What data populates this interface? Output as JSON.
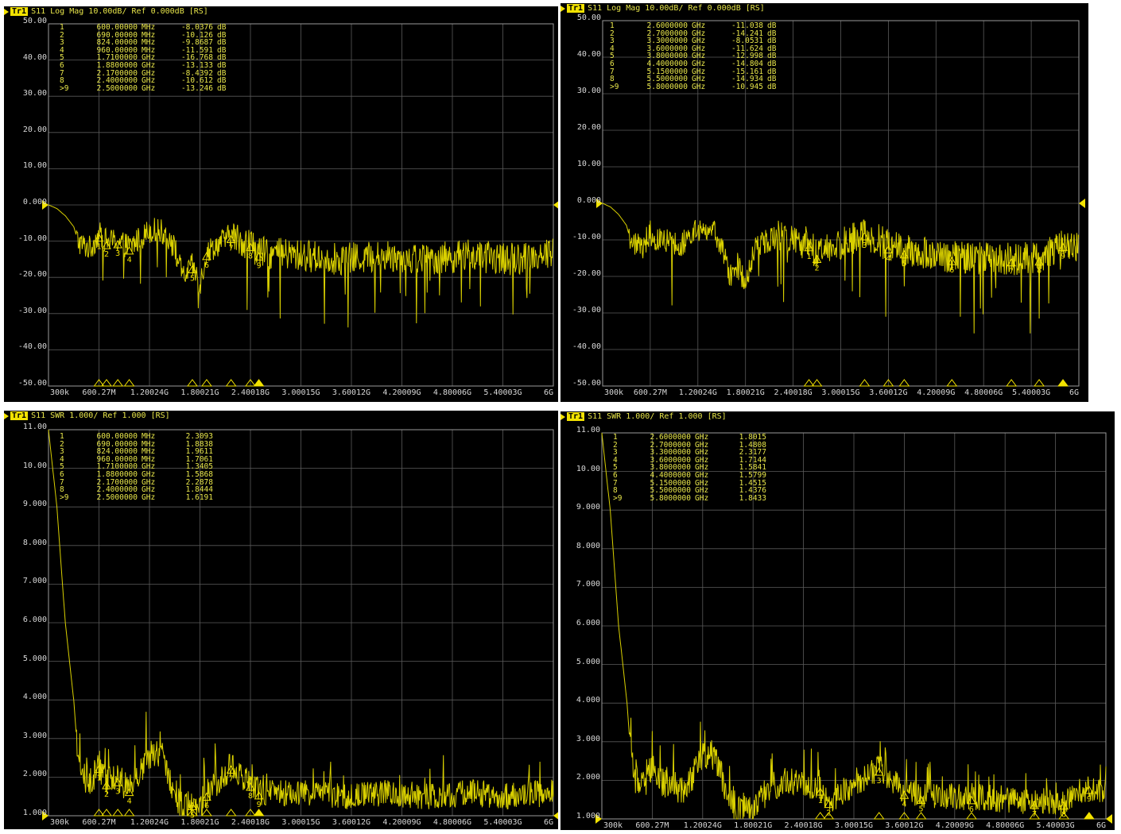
{
  "colors": {
    "trace": "#d9d000",
    "grid": "#5a5a5a",
    "frame": "#9a9a9a",
    "marker": "#f2e200",
    "label": "#d8d8d8",
    "background": "#000000"
  },
  "panels": [
    {
      "header": {
        "trace": "Tr1",
        "text": "S11 Log Mag 10.00dB/ Ref 0.000dB [RS]"
      },
      "ref_value": 0,
      "markers": [
        {
          "id": "1",
          "freq": "600.00000",
          "unit": "MHz",
          "value": "-8.0376",
          "suffix": "dB"
        },
        {
          "id": "2",
          "freq": "690.00000",
          "unit": "MHz",
          "value": "-10.126",
          "suffix": "dB"
        },
        {
          "id": "3",
          "freq": "824.00000",
          "unit": "MHz",
          "value": "-9.8687",
          "suffix": "dB"
        },
        {
          "id": "4",
          "freq": "960.00000",
          "unit": "MHz",
          "value": "-11.591",
          "suffix": "dB"
        },
        {
          "id": "5",
          "freq": "1.7100000",
          "unit": "GHz",
          "value": "-16.768",
          "suffix": "dB"
        },
        {
          "id": "6",
          "freq": "1.8800000",
          "unit": "GHz",
          "value": "-13.133",
          "suffix": "dB"
        },
        {
          "id": "7",
          "freq": "2.1700000",
          "unit": "GHz",
          "value": "-8.4392",
          "suffix": "dB"
        },
        {
          "id": "8",
          "freq": "2.4000000",
          "unit": "GHz",
          "value": "-10.612",
          "suffix": "dB"
        },
        {
          "id": ">9",
          "freq": "2.5000000",
          "unit": "GHz",
          "value": "-13.246",
          "suffix": "dB"
        }
      ]
    },
    {
      "header": {
        "trace": "Tr1",
        "text": "S11 Log Mag 10.00dB/ Ref 0.000dB [RS]"
      },
      "ref_value": 0,
      "markers": [
        {
          "id": "1",
          "freq": "2.6000000",
          "unit": "GHz",
          "value": "-11.038",
          "suffix": "dB"
        },
        {
          "id": "2",
          "freq": "2.7000000",
          "unit": "GHz",
          "value": "-14.241",
          "suffix": "dB"
        },
        {
          "id": "3",
          "freq": "3.3000000",
          "unit": "GHz",
          "value": "-8.0531",
          "suffix": "dB"
        },
        {
          "id": "4",
          "freq": "3.6000000",
          "unit": "GHz",
          "value": "-11.624",
          "suffix": "dB"
        },
        {
          "id": "5",
          "freq": "3.8000000",
          "unit": "GHz",
          "value": "-12.998",
          "suffix": "dB"
        },
        {
          "id": "6",
          "freq": "4.4000000",
          "unit": "GHz",
          "value": "-14.804",
          "suffix": "dB"
        },
        {
          "id": "7",
          "freq": "5.1500000",
          "unit": "GHz",
          "value": "-15.161",
          "suffix": "dB"
        },
        {
          "id": "8",
          "freq": "5.5000000",
          "unit": "GHz",
          "value": "-14.934",
          "suffix": "dB"
        },
        {
          "id": ">9",
          "freq": "5.8000000",
          "unit": "GHz",
          "value": "-10.945",
          "suffix": "dB"
        }
      ]
    },
    {
      "header": {
        "trace": "Tr1",
        "text": "S11 SWR 1.000/ Ref 1.000 [RS]"
      },
      "ref_value": 1,
      "markers": [
        {
          "id": "1",
          "freq": "600.00000",
          "unit": "MHz",
          "value": "2.3093",
          "suffix": ""
        },
        {
          "id": "2",
          "freq": "690.00000",
          "unit": "MHz",
          "value": "1.8838",
          "suffix": ""
        },
        {
          "id": "3",
          "freq": "824.00000",
          "unit": "MHz",
          "value": "1.9611",
          "suffix": ""
        },
        {
          "id": "4",
          "freq": "960.00000",
          "unit": "MHz",
          "value": "1.7061",
          "suffix": ""
        },
        {
          "id": "5",
          "freq": "1.7100000",
          "unit": "GHz",
          "value": "1.3405",
          "suffix": ""
        },
        {
          "id": "6",
          "freq": "1.8800000",
          "unit": "GHz",
          "value": "1.5868",
          "suffix": ""
        },
        {
          "id": "7",
          "freq": "2.1700000",
          "unit": "GHz",
          "value": "2.2878",
          "suffix": ""
        },
        {
          "id": "8",
          "freq": "2.4000000",
          "unit": "GHz",
          "value": "1.8444",
          "suffix": ""
        },
        {
          "id": ">9",
          "freq": "2.5000000",
          "unit": "GHz",
          "value": "1.6191",
          "suffix": ""
        }
      ]
    },
    {
      "header": {
        "trace": "Tr1",
        "text": "S11 SWR 1.000/ Ref 1.000 [RS]"
      },
      "ref_value": 1,
      "markers": [
        {
          "id": "1",
          "freq": "2.6000000",
          "unit": "GHz",
          "value": "1.8015",
          "suffix": ""
        },
        {
          "id": "2",
          "freq": "2.7000000",
          "unit": "GHz",
          "value": "1.4808",
          "suffix": ""
        },
        {
          "id": "3",
          "freq": "3.3000000",
          "unit": "GHz",
          "value": "2.3177",
          "suffix": ""
        },
        {
          "id": "4",
          "freq": "3.6000000",
          "unit": "GHz",
          "value": "1.7144",
          "suffix": ""
        },
        {
          "id": "5",
          "freq": "3.8000000",
          "unit": "GHz",
          "value": "1.5841",
          "suffix": ""
        },
        {
          "id": "6",
          "freq": "4.4000000",
          "unit": "GHz",
          "value": "1.5799",
          "suffix": ""
        },
        {
          "id": "7",
          "freq": "5.1500000",
          "unit": "GHz",
          "value": "1.4515",
          "suffix": ""
        },
        {
          "id": "8",
          "freq": "5.5000000",
          "unit": "GHz",
          "value": "1.4376",
          "suffix": ""
        },
        {
          "id": ">9",
          "freq": "5.8000000",
          "unit": "GHz",
          "value": "1.8433",
          "suffix": ""
        }
      ]
    }
  ],
  "chart_data": [
    {
      "type": "line",
      "title": "S11 Log Mag 10.00dB/ Ref 0.000dB [RS]",
      "xlim_ghz": [
        0.0003,
        6.0
      ],
      "ylim": [
        -50,
        50
      ],
      "yticks": [
        "50.00",
        "40.00",
        "30.00",
        "20.00",
        "10.00",
        "0.000",
        "-10.00",
        "-20.00",
        "-30.00",
        "-40.00",
        "-50.00"
      ],
      "xticks": [
        "300k",
        "600.27M",
        "1.20024G",
        "1.80021G",
        "2.40018G",
        "3.00015G",
        "3.60012G",
        "4.20009G",
        "4.80006G",
        "5.40003G",
        "6G"
      ],
      "grid": true,
      "series": [
        {
          "x_ghz": [
            0.0003,
            0.1,
            0.2,
            0.3,
            0.35,
            0.4,
            0.5,
            0.6,
            0.69,
            0.824,
            0.96,
            1.1,
            1.2,
            1.3,
            1.4,
            1.5,
            1.6,
            1.71,
            1.8,
            1.88,
            2.0,
            2.17,
            2.3,
            2.4,
            2.5,
            3.0,
            3.5,
            4.0,
            4.5,
            5.0,
            5.5,
            6.0
          ],
          "y": [
            0,
            -1,
            -3,
            -6,
            -10,
            -11,
            -12,
            -8,
            -10.1,
            -9.9,
            -11.6,
            -9,
            -7,
            -7,
            -8,
            -12,
            -20,
            -16.8,
            -22,
            -13.1,
            -11,
            -8.4,
            -10,
            -10.6,
            -13.2,
            -14,
            -15,
            -14,
            -15,
            -14,
            -15,
            -13
          ]
        }
      ],
      "markers_ghz": [
        0.6,
        0.69,
        0.824,
        0.96,
        1.71,
        1.88,
        2.17,
        2.4,
        2.5
      ],
      "markers_y": [
        -8.0376,
        -10.126,
        -9.8687,
        -11.591,
        -16.768,
        -13.133,
        -8.4392,
        -10.612,
        -13.246
      ]
    },
    {
      "type": "line",
      "title": "S11 Log Mag 10.00dB/ Ref 0.000dB [RS]",
      "xlim_ghz": [
        0.0003,
        6.0
      ],
      "ylim": [
        -50,
        50
      ],
      "yticks": [
        "50.00",
        "40.00",
        "30.00",
        "20.00",
        "10.00",
        "0.000",
        "-10.00",
        "-20.00",
        "-30.00",
        "-40.00",
        "-50.00"
      ],
      "xticks": [
        "300k",
        "600.27M",
        "1.20024G",
        "1.80021G",
        "2.40018G",
        "3.00015G",
        "3.60012G",
        "4.20009G",
        "4.80006G",
        "5.40003G",
        "6G"
      ],
      "grid": true,
      "series": [
        {
          "x_ghz": [
            0.0003,
            0.1,
            0.2,
            0.3,
            0.35,
            0.4,
            0.5,
            0.6,
            0.7,
            0.824,
            0.96,
            1.1,
            1.2,
            1.3,
            1.4,
            1.5,
            1.6,
            1.7,
            1.8,
            1.9,
            2.0,
            2.2,
            2.4,
            2.6,
            2.7,
            3.3,
            3.6,
            3.8,
            4.4,
            5.15,
            5.5,
            5.8,
            6.0
          ],
          "y": [
            0,
            -1,
            -3,
            -6,
            -10,
            -11,
            -12,
            -8,
            -10,
            -10,
            -11.5,
            -9,
            -7,
            -7,
            -8,
            -12,
            -20,
            -17,
            -22,
            -13,
            -11,
            -9,
            -10,
            -11,
            -14.2,
            -8.1,
            -11.6,
            -13,
            -14.8,
            -15.2,
            -14.9,
            -10.9,
            -12
          ]
        }
      ],
      "markers_ghz": [
        2.6,
        2.7,
        3.3,
        3.6,
        3.8,
        4.4,
        5.15,
        5.5,
        5.8
      ],
      "markers_y": [
        -11.038,
        -14.241,
        -8.0531,
        -11.624,
        -12.998,
        -14.804,
        -15.161,
        -14.934,
        -10.945
      ]
    },
    {
      "type": "line",
      "title": "S11 SWR 1.000/ Ref 1.000 [RS]",
      "xlim_ghz": [
        0.0003,
        6.0
      ],
      "ylim": [
        1,
        11
      ],
      "yticks": [
        "11.00",
        "10.00",
        "9.000",
        "8.000",
        "7.000",
        "6.000",
        "5.000",
        "4.000",
        "3.000",
        "2.000",
        "1.000"
      ],
      "xticks": [
        "300k",
        "600.27M",
        "1.20024G",
        "1.80021G",
        "2.40018G",
        "3.00015G",
        "3.60012G",
        "4.20009G",
        "4.80006G",
        "5.40003G",
        "6G"
      ],
      "grid": true,
      "series": [
        {
          "x_ghz": [
            0.0003,
            0.1,
            0.2,
            0.3,
            0.35,
            0.4,
            0.5,
            0.6,
            0.69,
            0.824,
            0.96,
            1.1,
            1.2,
            1.3,
            1.4,
            1.5,
            1.6,
            1.71,
            1.8,
            1.88,
            2.0,
            2.17,
            2.3,
            2.4,
            2.5,
            3.0,
            3.5,
            4.0,
            4.5,
            5.0,
            5.5,
            6.0
          ],
          "y": [
            11,
            9,
            6,
            4,
            2.5,
            2,
            1.9,
            2.3,
            1.9,
            2.0,
            1.7,
            2.2,
            2.6,
            2.7,
            2.3,
            1.6,
            1.2,
            1.34,
            1.2,
            1.6,
            1.9,
            2.3,
            2.0,
            1.8,
            1.6,
            1.6,
            1.5,
            1.6,
            1.5,
            1.6,
            1.5,
            1.6
          ]
        }
      ],
      "markers_ghz": [
        0.6,
        0.69,
        0.824,
        0.96,
        1.71,
        1.88,
        2.17,
        2.4,
        2.5
      ],
      "markers_y": [
        2.3093,
        1.8838,
        1.9611,
        1.7061,
        1.3405,
        1.5868,
        2.2878,
        1.8444,
        1.6191
      ]
    },
    {
      "type": "line",
      "title": "S11 SWR 1.000/ Ref 1.000 [RS]",
      "xlim_ghz": [
        0.0003,
        6.0
      ],
      "ylim": [
        1,
        11
      ],
      "yticks": [
        "11.00",
        "10.00",
        "9.000",
        "8.000",
        "7.000",
        "6.000",
        "5.000",
        "4.000",
        "3.000",
        "2.000",
        "1.000"
      ],
      "xticks": [
        "300k",
        "600.27M",
        "1.20024G",
        "1.80021G",
        "2.40018G",
        "3.00015G",
        "3.60012G",
        "4.20009G",
        "4.80006G",
        "5.40003G",
        "6G"
      ],
      "grid": true,
      "series": [
        {
          "x_ghz": [
            0.0003,
            0.1,
            0.2,
            0.3,
            0.35,
            0.4,
            0.5,
            0.6,
            0.7,
            0.824,
            0.96,
            1.1,
            1.2,
            1.3,
            1.4,
            1.5,
            1.6,
            1.7,
            1.8,
            1.9,
            2.0,
            2.2,
            2.4,
            2.6,
            2.7,
            3.3,
            3.6,
            3.8,
            4.4,
            5.15,
            5.5,
            5.8,
            6.0
          ],
          "y": [
            11,
            9,
            6,
            4,
            2.5,
            2,
            1.9,
            2.3,
            1.9,
            2.0,
            1.7,
            2.2,
            2.6,
            2.7,
            2.3,
            1.6,
            1.2,
            1.3,
            1.2,
            1.5,
            1.8,
            2.0,
            1.9,
            1.8,
            1.48,
            2.32,
            1.71,
            1.58,
            1.58,
            1.45,
            1.44,
            1.84,
            1.7
          ]
        }
      ],
      "markers_ghz": [
        2.6,
        2.7,
        3.3,
        3.6,
        3.8,
        4.4,
        5.15,
        5.5,
        5.8
      ],
      "markers_y": [
        1.8015,
        1.4808,
        2.3177,
        1.7144,
        1.5841,
        1.5799,
        1.4515,
        1.4376,
        1.8433
      ]
    }
  ]
}
